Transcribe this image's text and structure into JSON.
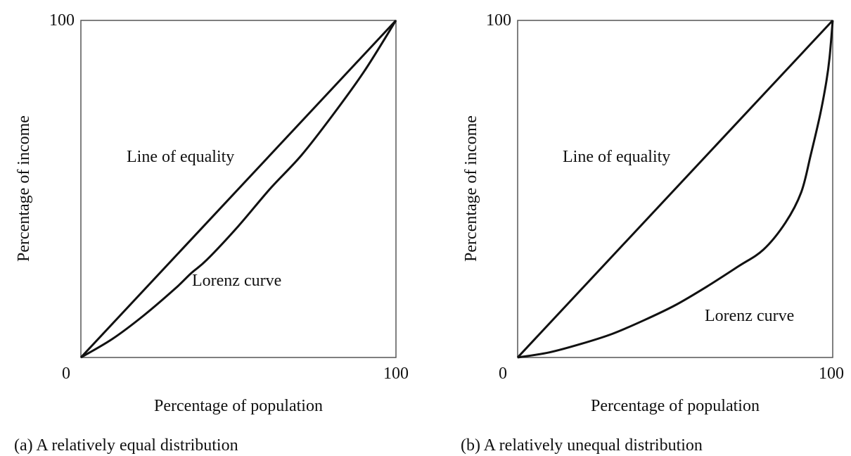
{
  "chart_data": [
    {
      "type": "line",
      "caption": "(a) A relatively equal distribution",
      "xlabel": "Percentage of population",
      "ylabel": "Percentage of income",
      "xlim": [
        0,
        100
      ],
      "ylim": [
        0,
        100
      ],
      "tick_labels": {
        "origin": "0",
        "x_max": "100",
        "y_max": "100"
      },
      "grid": false,
      "series": [
        {
          "name": "Line of equality",
          "points": [
            [
              0,
              0
            ],
            [
              100,
              100
            ]
          ]
        },
        {
          "name": "Lorenz curve",
          "points": [
            [
              0,
              0
            ],
            [
              10,
              5.5
            ],
            [
              20,
              12.5
            ],
            [
              30,
              20.5
            ],
            [
              35,
              25
            ],
            [
              40,
              29
            ],
            [
              50,
              39
            ],
            [
              60,
              50
            ],
            [
              70,
              60
            ],
            [
              80,
              72
            ],
            [
              90,
              85
            ],
            [
              100,
              100
            ]
          ]
        }
      ]
    },
    {
      "type": "line",
      "caption": "(b) A relatively unequal distribution",
      "xlabel": "Percentage of population",
      "ylabel": "Percentage of income",
      "xlim": [
        0,
        100
      ],
      "ylim": [
        0,
        100
      ],
      "tick_labels": {
        "origin": "0",
        "x_max": "100",
        "y_max": "100"
      },
      "grid": false,
      "series": [
        {
          "name": "Line of equality",
          "points": [
            [
              0,
              0
            ],
            [
              100,
              100
            ]
          ]
        },
        {
          "name": "Lorenz curve",
          "points": [
            [
              0,
              0
            ],
            [
              10,
              1.5
            ],
            [
              20,
              4
            ],
            [
              30,
              7
            ],
            [
              40,
              11
            ],
            [
              50,
              15.5
            ],
            [
              60,
              21
            ],
            [
              70,
              27
            ],
            [
              78,
              32
            ],
            [
              85,
              40
            ],
            [
              90,
              49
            ],
            [
              93,
              60
            ],
            [
              96,
              72
            ],
            [
              98,
              82
            ],
            [
              99,
              89
            ],
            [
              100,
              100
            ]
          ]
        }
      ]
    }
  ]
}
